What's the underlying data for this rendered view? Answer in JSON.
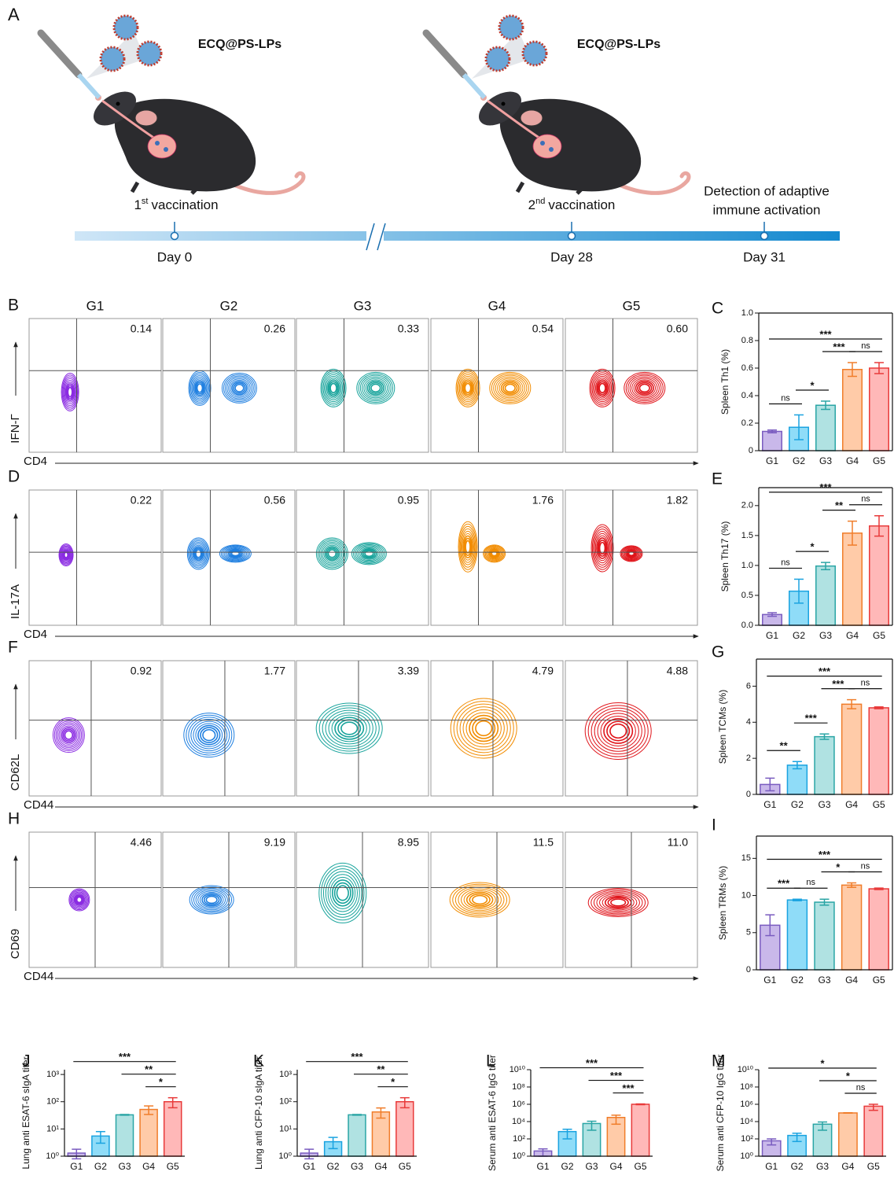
{
  "schematic": {
    "panel": "A",
    "agent_labels": [
      "ECQ@PS-LPs",
      "ECQ@PS-LPs"
    ],
    "vaccinations": [
      {
        "ordinal": "1",
        "suffix": "st",
        "text": "vaccination"
      },
      {
        "ordinal": "2",
        "suffix": "nd",
        "text": "vaccination"
      }
    ],
    "detection": [
      "Detection of adaptive",
      "immune activation"
    ],
    "timeline": [
      "Day 0",
      "Day 28",
      "Day 31"
    ]
  },
  "flow_cytometry": {
    "column_headers": [
      "G1",
      "G2",
      "G3",
      "G4",
      "G5"
    ],
    "colors": [
      "#8a2be2",
      "#1f7fe0",
      "#17a39b",
      "#f28c00",
      "#e0141a"
    ],
    "rows": [
      {
        "panel": "B",
        "x_label": "CD4",
        "y_label": "IFN-Γ",
        "values": [
          "0.14",
          "0.26",
          "0.33",
          "0.54",
          "0.60"
        ]
      },
      {
        "panel": "D",
        "x_label": "CD4",
        "y_label": "IL-17A",
        "values": [
          "0.22",
          "0.56",
          "0.95",
          "1.76",
          "1.82"
        ]
      },
      {
        "panel": "F",
        "x_label": "CD44",
        "y_label": "CD62L",
        "values": [
          "0.92",
          "1.77",
          "3.39",
          "4.79",
          "4.88"
        ]
      },
      {
        "panel": "H",
        "x_label": "CD44",
        "y_label": "CD69",
        "values": [
          "4.46",
          "9.19",
          "8.95",
          "11.5",
          "11.0"
        ]
      }
    ]
  },
  "chart_data": [
    {
      "type": "bar",
      "panel": "C",
      "y_label": "Spleen Th1 (%)",
      "categories": [
        "G1",
        "G2",
        "G3",
        "G4",
        "G5"
      ],
      "values": [
        0.14,
        0.17,
        0.33,
        0.59,
        0.6
      ],
      "errors": [
        0.01,
        0.09,
        0.03,
        0.05,
        0.04
      ],
      "colors": [
        "#c9b8ea",
        "#8fdcf8",
        "#b0e2e2",
        "#ffcba8",
        "#ffb8b8"
      ],
      "edge_colors": [
        "#7a5cc0",
        "#1aa3e0",
        "#2aa5a5",
        "#f07d2a",
        "#e83a3a"
      ],
      "ylim": [
        0,
        1
      ],
      "yticks": [
        0,
        0.2,
        0.4,
        0.6,
        0.8,
        {
          "value": 1,
          "label": "1.0"
        }
      ],
      "frame": true,
      "log_scale": false,
      "significance": [
        {
          "label": "ns",
          "from": "G1",
          "to": "G2"
        },
        {
          "label": "*",
          "from": "G2",
          "to": "G3"
        },
        {
          "label": "***",
          "from": "G3",
          "to": "G4"
        },
        {
          "label": "ns",
          "from": "G4",
          "to": "G5"
        },
        {
          "label": "***",
          "from": "G1",
          "to": "G5"
        }
      ]
    },
    {
      "type": "bar",
      "panel": "E",
      "y_label": "Spleen Th17 (%)",
      "categories": [
        "G1",
        "G2",
        "G3",
        "G4",
        "G5"
      ],
      "values": [
        0.18,
        0.57,
        0.99,
        1.54,
        1.66
      ],
      "errors": [
        0.03,
        0.2,
        0.06,
        0.2,
        0.17
      ],
      "colors": [
        "#c9b8ea",
        "#8fdcf8",
        "#b0e2e2",
        "#ffcba8",
        "#ffb8b8"
      ],
      "edge_colors": [
        "#7a5cc0",
        "#1aa3e0",
        "#2aa5a5",
        "#f07d2a",
        "#e83a3a"
      ],
      "ylim": [
        0,
        2.3
      ],
      "yticks": [
        {
          "value": 0,
          "label": "0.0"
        },
        0.5,
        {
          "value": 1,
          "label": "1.0"
        },
        1.5,
        {
          "value": 2,
          "label": "2.0"
        }
      ],
      "frame": true,
      "log_scale": false,
      "significance": [
        {
          "label": "ns",
          "from": "G1",
          "to": "G2"
        },
        {
          "label": "*",
          "from": "G2",
          "to": "G3"
        },
        {
          "label": "**",
          "from": "G3",
          "to": "G4"
        },
        {
          "label": "ns",
          "from": "G4",
          "to": "G5"
        },
        {
          "label": "***",
          "from": "G1",
          "to": "G5"
        }
      ]
    },
    {
      "type": "bar",
      "panel": "G",
      "y_label": "Spleen TCMs (%)",
      "categories": [
        "G1",
        "G2",
        "G3",
        "G4",
        "G5"
      ],
      "values": [
        0.55,
        1.62,
        3.2,
        5.0,
        4.8
      ],
      "errors": [
        0.35,
        0.2,
        0.15,
        0.25,
        0.05
      ],
      "colors": [
        "#c9b8ea",
        "#8fdcf8",
        "#b0e2e2",
        "#ffcba8",
        "#ffb8b8"
      ],
      "edge_colors": [
        "#7a5cc0",
        "#1aa3e0",
        "#2aa5a5",
        "#f07d2a",
        "#e83a3a"
      ],
      "ylim": [
        0,
        7.5
      ],
      "yticks": [
        0,
        2,
        4,
        6
      ],
      "frame": true,
      "log_scale": false,
      "significance": [
        {
          "label": "**",
          "from": "G1",
          "to": "G2"
        },
        {
          "label": "***",
          "from": "G2",
          "to": "G3"
        },
        {
          "label": "***",
          "from": "G3",
          "to": "G4"
        },
        {
          "label": "ns",
          "from": "G4",
          "to": "G5"
        },
        {
          "label": "***",
          "from": "G1",
          "to": "G5"
        }
      ]
    },
    {
      "type": "bar",
      "panel": "I",
      "y_label": "Spleen TRMs (%)",
      "categories": [
        "G1",
        "G2",
        "G3",
        "G4",
        "G5"
      ],
      "values": [
        6.0,
        9.4,
        9.1,
        11.4,
        10.9
      ],
      "errors": [
        1.4,
        0.1,
        0.4,
        0.3,
        0.1
      ],
      "colors": [
        "#c9b8ea",
        "#8fdcf8",
        "#b0e2e2",
        "#ffcba8",
        "#ffb8b8"
      ],
      "edge_colors": [
        "#7a5cc0",
        "#1aa3e0",
        "#2aa5a5",
        "#f07d2a",
        "#e83a3a"
      ],
      "ylim": [
        0,
        18
      ],
      "yticks": [
        0,
        5,
        10,
        15
      ],
      "frame": true,
      "log_scale": false,
      "significance": [
        {
          "label": "***",
          "from": "G1",
          "to": "G2"
        },
        {
          "label": "ns",
          "from": "G2",
          "to": "G3"
        },
        {
          "label": "*",
          "from": "G3",
          "to": "G4"
        },
        {
          "label": "ns",
          "from": "G4",
          "to": "G5"
        },
        {
          "label": "***",
          "from": "G1",
          "to": "G5"
        }
      ]
    },
    {
      "type": "bar",
      "panel": "J",
      "y_label": "Lung anti ESAT-6 sIgA titer",
      "categories": [
        "G1",
        "G2",
        "G3",
        "G4",
        "G5"
      ],
      "values": [
        1.3,
        5.5,
        33,
        52,
        100
      ],
      "errors": [
        0.5,
        2.5,
        1,
        18,
        40
      ],
      "colors": [
        "#c9b8ea",
        "#8fdcf8",
        "#b0e2e2",
        "#ffcba8",
        "#ffb8b8"
      ],
      "edge_colors": [
        "#7a5cc0",
        "#1aa3e0",
        "#2aa5a5",
        "#f07d2a",
        "#e83a3a"
      ],
      "ylim": [
        1,
        1500
      ],
      "yticks": [
        {
          "value": 1,
          "label": "10⁰"
        },
        {
          "value": 10,
          "label": "10¹"
        },
        {
          "value": 100,
          "label": "10²"
        },
        {
          "value": 1000,
          "label": "10³"
        }
      ],
      "frame": false,
      "log_scale": true,
      "significance": [
        {
          "label": "*",
          "from": "G4",
          "to": "G5"
        },
        {
          "label": "**",
          "from": "G3",
          "to": "G5"
        },
        {
          "label": "***",
          "from": "G1",
          "to": "G5"
        }
      ]
    },
    {
      "type": "bar",
      "panel": "K",
      "y_label": "Lung anti CFP-10 sIgA titer",
      "categories": [
        "G1",
        "G2",
        "G3",
        "G4",
        "G5"
      ],
      "values": [
        1.3,
        3.4,
        33,
        42,
        100
      ],
      "errors": [
        0.5,
        1.5,
        1,
        17,
        40
      ],
      "colors": [
        "#c9b8ea",
        "#8fdcf8",
        "#b0e2e2",
        "#ffcba8",
        "#ffb8b8"
      ],
      "edge_colors": [
        "#7a5cc0",
        "#1aa3e0",
        "#2aa5a5",
        "#f07d2a",
        "#e83a3a"
      ],
      "ylim": [
        1,
        1500
      ],
      "yticks": [
        {
          "value": 1,
          "label": "10⁰"
        },
        {
          "value": 10,
          "label": "10¹"
        },
        {
          "value": 100,
          "label": "10²"
        },
        {
          "value": 1000,
          "label": "10³"
        }
      ],
      "frame": false,
      "log_scale": true,
      "significance": [
        {
          "label": "*",
          "from": "G4",
          "to": "G5"
        },
        {
          "label": "**",
          "from": "G3",
          "to": "G5"
        },
        {
          "label": "***",
          "from": "G1",
          "to": "G5"
        }
      ]
    },
    {
      "type": "bar",
      "panel": "L",
      "y_label": "Serum anti ESAT-6 IgG titer",
      "categories": [
        "G1",
        "G2",
        "G3",
        "G4",
        "G5"
      ],
      "values": [
        4,
        700,
        6000,
        30000,
        1000000
      ],
      "errors": [
        3,
        600,
        5000,
        25000,
        100000
      ],
      "colors": [
        "#c9b8ea",
        "#8fdcf8",
        "#b0e2e2",
        "#ffcba8",
        "#ffb8b8"
      ],
      "edge_colors": [
        "#7a5cc0",
        "#1aa3e0",
        "#2aa5a5",
        "#f07d2a",
        "#e83a3a"
      ],
      "ylim": [
        1,
        10000000000
      ],
      "yticks": [
        {
          "value": 1,
          "label": "10⁰"
        },
        {
          "value": 100,
          "label": "10²"
        },
        {
          "value": 10000,
          "label": "10⁴"
        },
        {
          "value": 1000000,
          "label": "10⁶"
        },
        {
          "value": 100000000,
          "label": "10⁸"
        },
        {
          "value": 10000000000,
          "label": "10¹⁰"
        }
      ],
      "frame": false,
      "log_scale": true,
      "significance": [
        {
          "label": "***",
          "from": "G4",
          "to": "G5"
        },
        {
          "label": "***",
          "from": "G3",
          "to": "G5"
        },
        {
          "label": "***",
          "from": "G1",
          "to": "G5"
        }
      ]
    },
    {
      "type": "bar",
      "panel": "M",
      "y_label": "Serum anti CFP-10 IgG titer",
      "categories": [
        "G1",
        "G2",
        "G3",
        "G4",
        "G5"
      ],
      "values": [
        60,
        250,
        5000,
        100000,
        600000
      ],
      "errors": [
        40,
        200,
        4000,
        5000,
        400000
      ],
      "colors": [
        "#c9b8ea",
        "#8fdcf8",
        "#b0e2e2",
        "#ffcba8",
        "#ffb8b8"
      ],
      "edge_colors": [
        "#7a5cc0",
        "#1aa3e0",
        "#2aa5a5",
        "#f07d2a",
        "#e83a3a"
      ],
      "ylim": [
        1,
        10000000000
      ],
      "yticks": [
        {
          "value": 1,
          "label": "10⁰"
        },
        {
          "value": 100,
          "label": "10²"
        },
        {
          "value": 10000,
          "label": "10⁴"
        },
        {
          "value": 1000000,
          "label": "10⁶"
        },
        {
          "value": 100000000,
          "label": "10⁸"
        },
        {
          "value": 10000000000,
          "label": "10¹⁰"
        }
      ],
      "frame": false,
      "log_scale": true,
      "significance": [
        {
          "label": "ns",
          "from": "G4",
          "to": "G5"
        },
        {
          "label": "*",
          "from": "G3",
          "to": "G5"
        },
        {
          "label": "*",
          "from": "G1",
          "to": "G5"
        }
      ]
    }
  ]
}
